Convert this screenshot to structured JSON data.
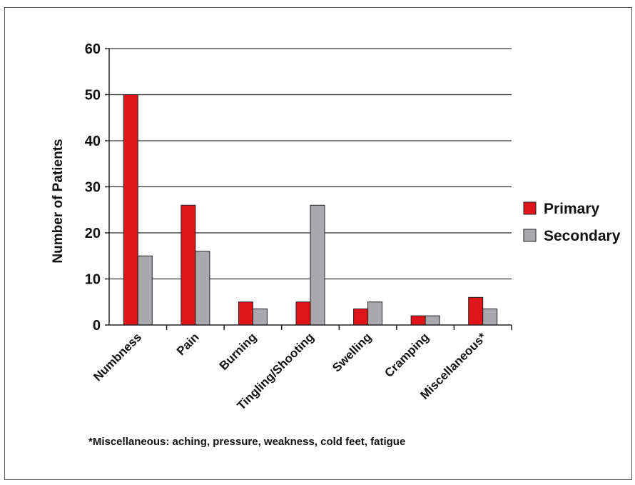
{
  "chart_data": {
    "type": "bar",
    "ylabel": "Number of Patients",
    "ylim": [
      0,
      60
    ],
    "yticks": [
      0,
      10,
      20,
      30,
      40,
      50,
      60
    ],
    "grid": true,
    "legend_position": "right",
    "categories": [
      "Numbness",
      "Pain",
      "Burning",
      "Tingling/Shooting",
      "Swelling",
      "Cramping",
      "Miscellaneous*"
    ],
    "series": [
      {
        "name": "Primary",
        "color": "#e0141b",
        "values": [
          50,
          26,
          5,
          5,
          3.5,
          2,
          6
        ]
      },
      {
        "name": "Secondary",
        "color": "#a9a9ad",
        "values": [
          15,
          16,
          3.5,
          26,
          5,
          2,
          3.5
        ]
      }
    ],
    "footnote": "*Miscellaneous: aching, pressure, weakness, cold feet, fatigue"
  }
}
